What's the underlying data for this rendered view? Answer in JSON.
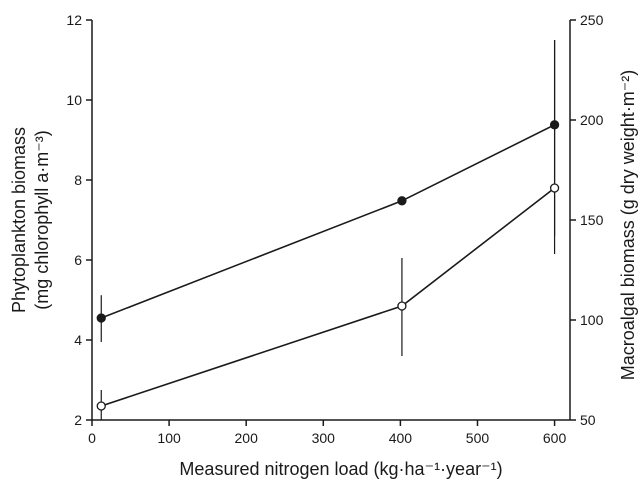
{
  "chart_data": {
    "type": "line",
    "xlabel": "Measured nitrogen load (kg·ha⁻¹·year⁻¹)",
    "ylabel_left_line1": "Phytoplankton biomass",
    "ylabel_left_line2": "(mg chlorophyll a·m⁻³)",
    "ylabel_right": "Macroalgal biomass (g dry weight·m⁻²)",
    "xlim": [
      0,
      620
    ],
    "ylim_left": [
      2,
      12
    ],
    "ylim_right": [
      50,
      250
    ],
    "x_ticks": [
      0,
      100,
      200,
      300,
      400,
      500,
      600
    ],
    "y_left_ticks": [
      2,
      4,
      6,
      8,
      10,
      12
    ],
    "y_right_ticks": [
      50,
      100,
      150,
      200,
      250
    ],
    "grid": false,
    "series": [
      {
        "marker": "filled-circle",
        "axis": "left",
        "x": [
          12,
          402,
          600
        ],
        "y": [
          4.55,
          7.48,
          9.38
        ],
        "err_low": [
          3.95,
          7.48,
          6.6
        ],
        "err_high": [
          5.12,
          7.48,
          11.5
        ]
      },
      {
        "marker": "open-circle",
        "axis": "right",
        "x": [
          12,
          402,
          600
        ],
        "y": [
          57,
          107,
          166
        ],
        "err_low": [
          50,
          82,
          133
        ],
        "err_high": [
          65,
          131,
          240
        ]
      }
    ]
  }
}
